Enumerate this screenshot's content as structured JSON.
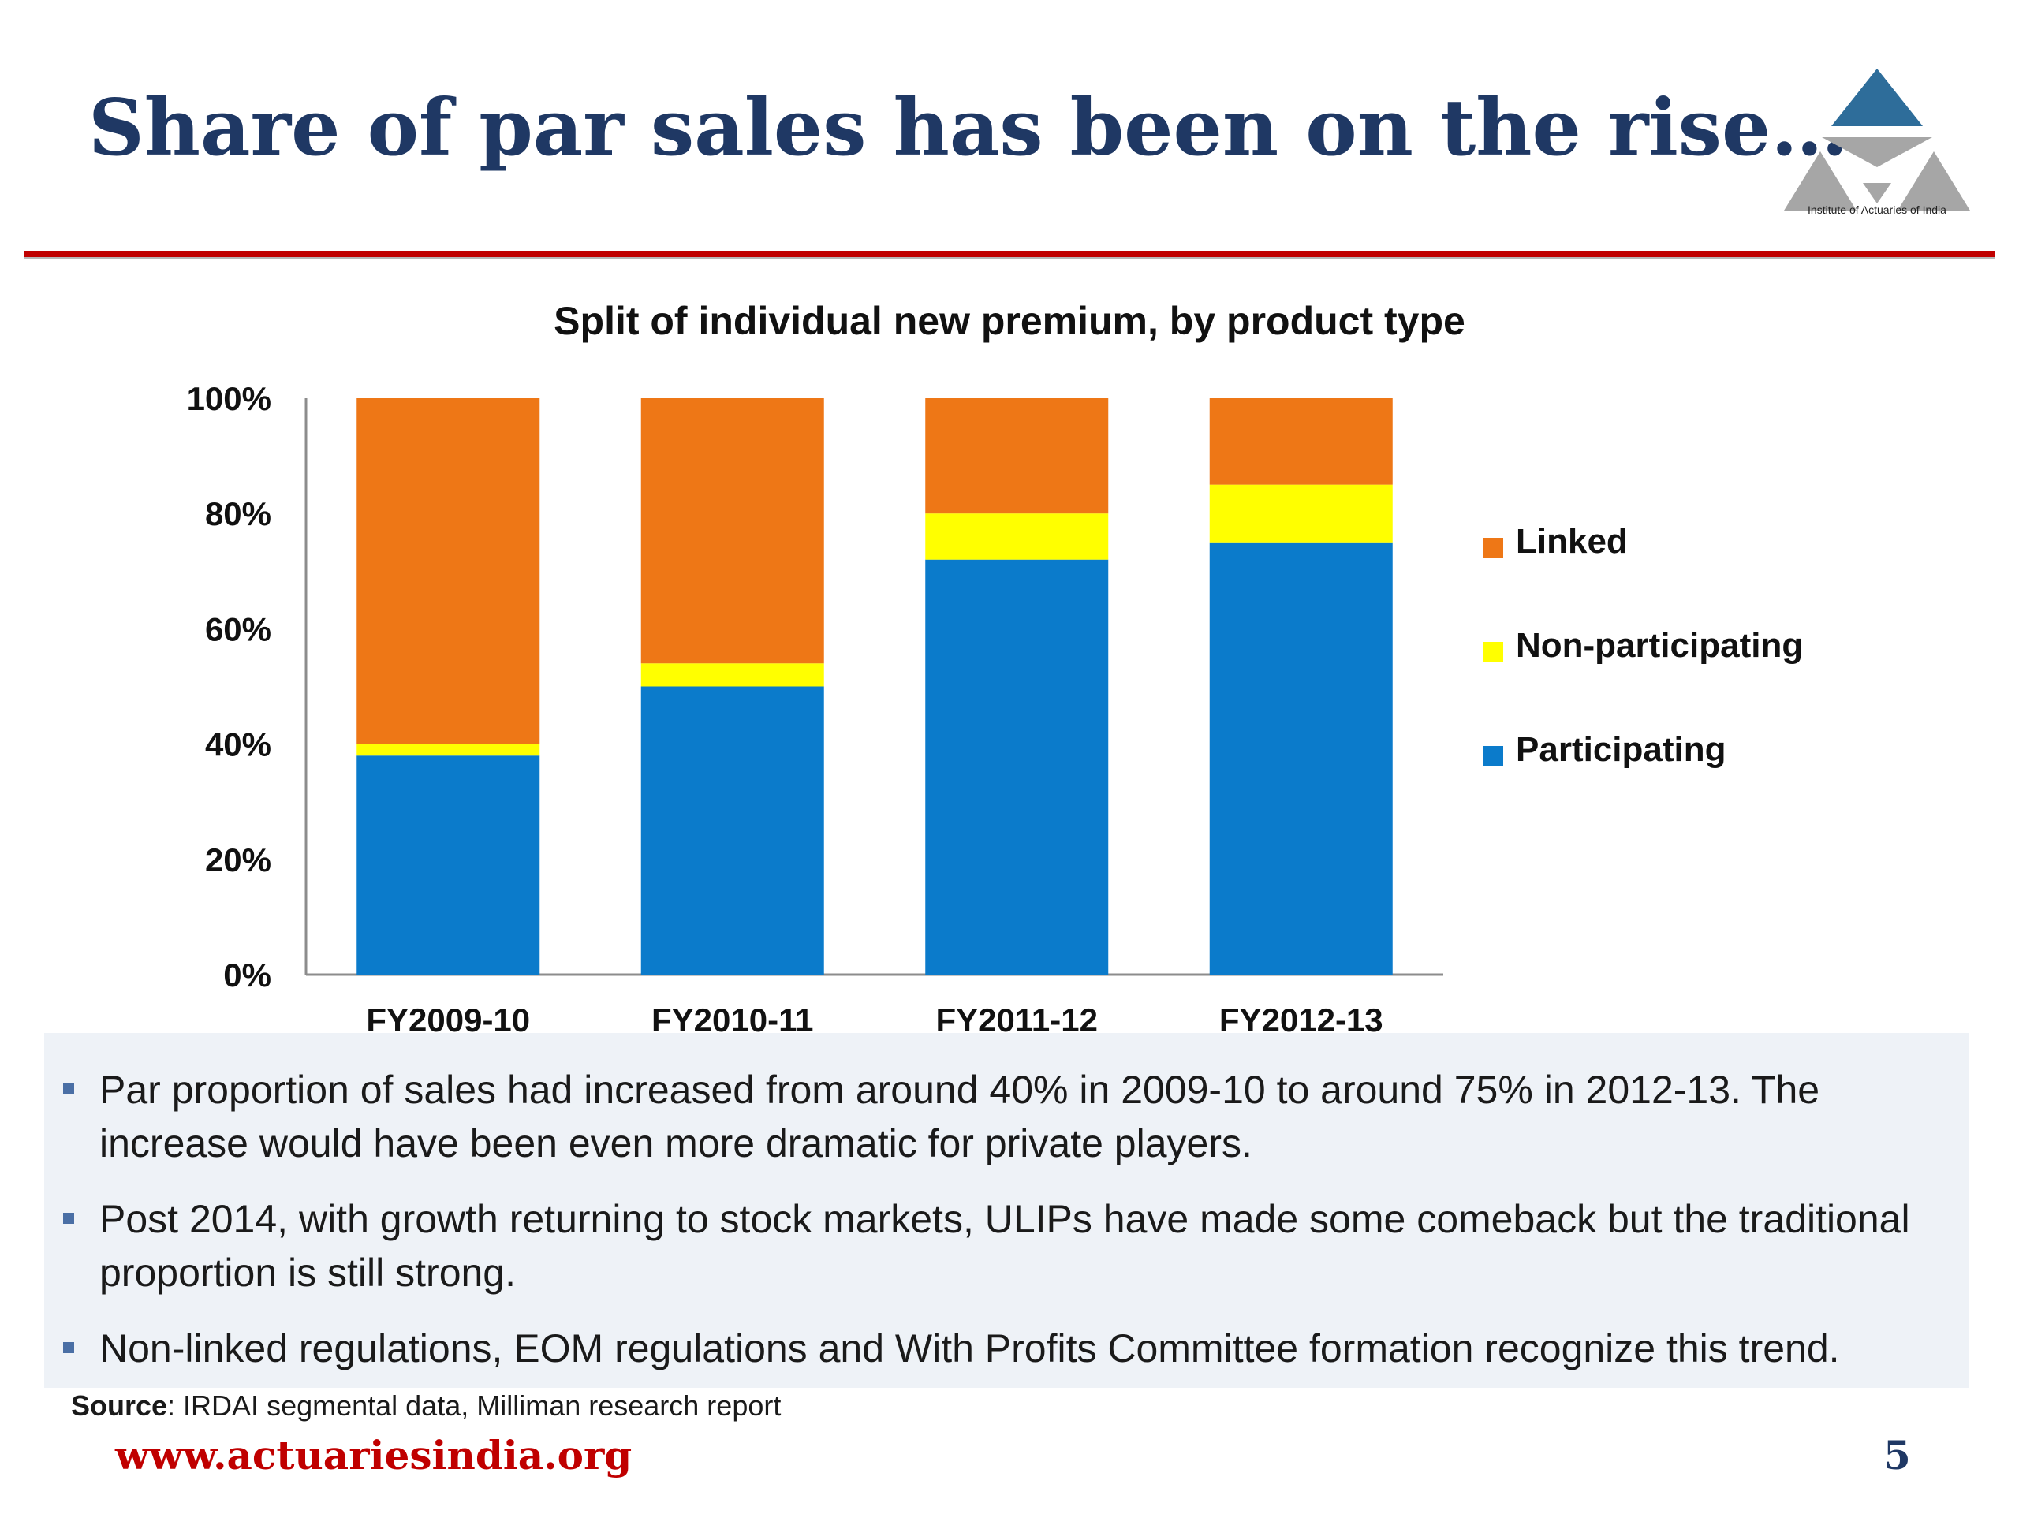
{
  "slide": {
    "title": "Share of par sales has been on the rise…",
    "logo_caption": "Institute of Actuaries of India",
    "source_label": "Source",
    "source_text": ": IRDAI segmental data, Milliman research report",
    "website": "www.actuariesindia.org",
    "page_number": "5",
    "bullets": [
      "Par proportion of sales had increased from around 40% in 2009-10 to around 75% in 2012-13.  The increase would have been even more dramatic for private players.",
      "Post 2014, with growth returning to stock markets, ULIPs have made some comeback but the traditional proportion is still strong.",
      "Non-linked regulations, EOM regulations and With Profits Committee formation recognize this trend."
    ]
  },
  "colors": {
    "title": "#1f3864",
    "rule": "#c00000",
    "participating": "#0b7bcb",
    "non_participating": "#ffff00",
    "linked": "#ee7716",
    "logo": "#2e6d9a"
  },
  "chart_data": {
    "type": "bar",
    "stacked": true,
    "percent_stacked": true,
    "title": "Split of individual new premium, by product type",
    "categories": [
      "FY2009-10",
      "FY2010-11",
      "FY2011-12",
      "FY2012-13"
    ],
    "series": [
      {
        "name": "Participating",
        "values": [
          38,
          50,
          72,
          75
        ],
        "color": "#0b7bcb"
      },
      {
        "name": "Non-participating",
        "values": [
          2,
          4,
          8,
          10
        ],
        "color": "#ffff00"
      },
      {
        "name": "Linked",
        "values": [
          60,
          46,
          20,
          15
        ],
        "color": "#ee7716"
      }
    ],
    "ylim": [
      0,
      100
    ],
    "yticks": [
      "0%",
      "20%",
      "40%",
      "60%",
      "80%",
      "100%"
    ],
    "legend_position": "right",
    "legend_order": [
      "Linked",
      "Non-participating",
      "Participating"
    ],
    "grid": false
  }
}
